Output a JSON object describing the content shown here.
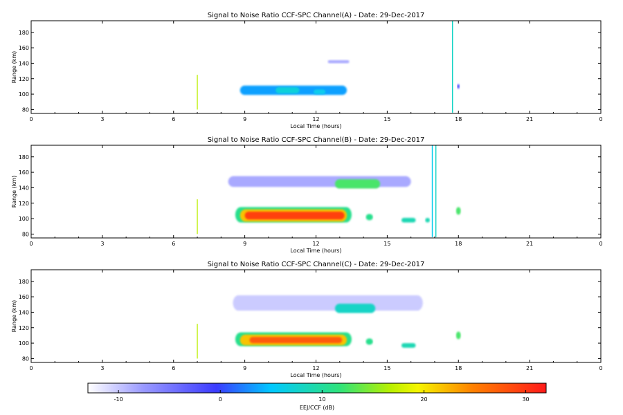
{
  "chart_data": [
    {
      "type": "heatmap",
      "title": "Signal to Noise Ratio CCF-SPC Channel(A) - Date: 29-Dec-2017",
      "xlabel": "Local Time (hours)",
      "ylabel": "Range (km)",
      "xlim": [
        0,
        24
      ],
      "ylim": [
        75,
        195
      ],
      "xticks": [
        "0",
        "3",
        "6",
        "9",
        "12",
        "15",
        "18",
        "21",
        "0"
      ],
      "yticks": [
        "80",
        "100",
        "120",
        "140",
        "160",
        "180"
      ],
      "features": [
        {
          "kind": "band",
          "t_start": 8.8,
          "t_end": 13.3,
          "range": 105,
          "half_width": 6,
          "snr_db": 0
        },
        {
          "kind": "band",
          "t_start": 10.3,
          "t_end": 11.3,
          "range": 105,
          "half_width": 4,
          "snr_db": 4
        },
        {
          "kind": "band",
          "t_start": 11.9,
          "t_end": 12.4,
          "range": 103,
          "half_width": 3,
          "snr_db": 3
        },
        {
          "kind": "band",
          "t_start": 12.5,
          "t_end": 13.4,
          "range": 142,
          "half_width": 2,
          "snr_db": -8
        },
        {
          "kind": "vline",
          "t": 7.0,
          "range_from": 80,
          "range_to": 125,
          "snr_db": 15
        },
        {
          "kind": "vline",
          "t": 17.75,
          "range_from": 76,
          "range_to": 195,
          "snr_db": 5
        },
        {
          "kind": "band",
          "t_start": 17.95,
          "t_end": 18.05,
          "range": 110,
          "half_width": 3,
          "snr_db": -5
        }
      ]
    },
    {
      "type": "heatmap",
      "title": "Signal to Noise Ratio CCF-SPC Channel(B) - Date: 29-Dec-2017",
      "xlabel": "Local Time (hours)",
      "ylabel": "Range (km)",
      "xlim": [
        0,
        24
      ],
      "ylim": [
        75,
        195
      ],
      "xticks": [
        "0",
        "3",
        "6",
        "9",
        "12",
        "15",
        "18",
        "21",
        "0"
      ],
      "yticks": [
        "80",
        "100",
        "120",
        "140",
        "160",
        "180"
      ],
      "features": [
        {
          "kind": "band",
          "t_start": 8.6,
          "t_end": 13.5,
          "range": 105,
          "half_width": 10,
          "snr_db": 8
        },
        {
          "kind": "band",
          "t_start": 8.8,
          "t_end": 13.3,
          "range": 104,
          "half_width": 8,
          "snr_db": 20
        },
        {
          "kind": "band",
          "t_start": 9.0,
          "t_end": 13.2,
          "range": 104,
          "half_width": 5,
          "snr_db": 29
        },
        {
          "kind": "band",
          "t_start": 8.3,
          "t_end": 16.0,
          "range": 148,
          "half_width": 7,
          "snr_db": -8
        },
        {
          "kind": "band",
          "t_start": 12.8,
          "t_end": 14.7,
          "range": 145,
          "half_width": 6,
          "snr_db": 10
        },
        {
          "kind": "band",
          "t_start": 14.1,
          "t_end": 14.4,
          "range": 102,
          "half_width": 4,
          "snr_db": 8
        },
        {
          "kind": "band",
          "t_start": 15.6,
          "t_end": 16.2,
          "range": 98,
          "half_width": 3,
          "snr_db": 6
        },
        {
          "kind": "band",
          "t_start": 16.6,
          "t_end": 16.8,
          "range": 98,
          "half_width": 3,
          "snr_db": 6
        },
        {
          "kind": "band",
          "t_start": 17.9,
          "t_end": 18.1,
          "range": 110,
          "half_width": 5,
          "snr_db": 10
        },
        {
          "kind": "vline",
          "t": 7.0,
          "range_from": 80,
          "range_to": 125,
          "snr_db": 15
        },
        {
          "kind": "vline",
          "t": 16.9,
          "range_from": 76,
          "range_to": 195,
          "snr_db": 3
        },
        {
          "kind": "vline",
          "t": 17.05,
          "range_from": 76,
          "range_to": 195,
          "snr_db": 5
        }
      ]
    },
    {
      "type": "heatmap",
      "title": "Signal to Noise Ratio CCF-SPC Channel(C) - Date: 29-Dec-2017",
      "xlabel": "Local Time (hours)",
      "ylabel": "Range (km)",
      "xlim": [
        0,
        24
      ],
      "ylim": [
        75,
        195
      ],
      "xticks": [
        "0",
        "3",
        "6",
        "9",
        "12",
        "15",
        "18",
        "21",
        "0"
      ],
      "yticks": [
        "80",
        "100",
        "120",
        "140",
        "160",
        "180"
      ],
      "features": [
        {
          "kind": "band",
          "t_start": 8.6,
          "t_end": 13.5,
          "range": 105,
          "half_width": 9,
          "snr_db": 8
        },
        {
          "kind": "band",
          "t_start": 8.8,
          "t_end": 13.3,
          "range": 104,
          "half_width": 7,
          "snr_db": 20
        },
        {
          "kind": "band",
          "t_start": 9.2,
          "t_end": 13.1,
          "range": 104,
          "half_width": 4,
          "snr_db": 27
        },
        {
          "kind": "band",
          "t_start": 8.5,
          "t_end": 16.5,
          "range": 152,
          "half_width": 10,
          "snr_db": -10
        },
        {
          "kind": "band",
          "t_start": 12.8,
          "t_end": 14.5,
          "range": 145,
          "half_width": 6,
          "snr_db": 5
        },
        {
          "kind": "band",
          "t_start": 14.1,
          "t_end": 14.4,
          "range": 102,
          "half_width": 4,
          "snr_db": 8
        },
        {
          "kind": "band",
          "t_start": 15.6,
          "t_end": 16.2,
          "range": 97,
          "half_width": 3,
          "snr_db": 6
        },
        {
          "kind": "band",
          "t_start": 17.9,
          "t_end": 18.1,
          "range": 110,
          "half_width": 5,
          "snr_db": 10
        },
        {
          "kind": "vline",
          "t": 7.0,
          "range_from": 80,
          "range_to": 125,
          "snr_db": 15
        }
      ]
    }
  ],
  "colorbar": {
    "label": "EEJ/CCF (dB)",
    "range": [
      -13,
      32
    ],
    "ticks": [
      "-10",
      "0",
      "10",
      "20",
      "30"
    ],
    "tick_values": [
      -10,
      0,
      10,
      20,
      30
    ]
  },
  "colors": {
    "background": "#ffffff",
    "axes": "#000000",
    "colormap": [
      "#ffffff",
      "#3b3bff",
      "#00c8ff",
      "#2fe37a",
      "#f5f500",
      "#ff8000",
      "#ff1a1a"
    ]
  }
}
